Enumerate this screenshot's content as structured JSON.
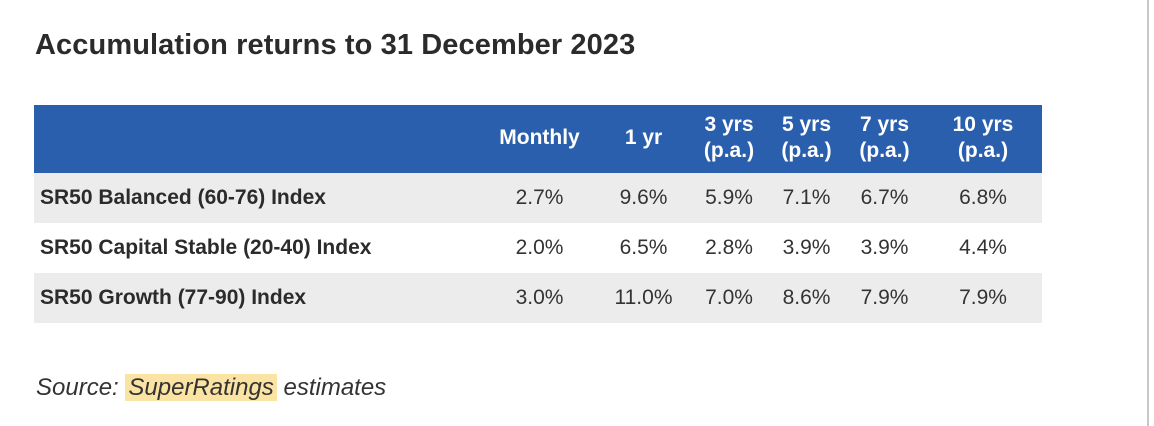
{
  "title": "Accumulation returns to 31 December 2023",
  "table": {
    "headers": [
      {
        "line1": "",
        "line2": ""
      },
      {
        "line1": "Monthly",
        "line2": ""
      },
      {
        "line1": "1 yr",
        "line2": ""
      },
      {
        "line1": "3 yrs",
        "line2": "(p.a.)"
      },
      {
        "line1": "5 yrs",
        "line2": "(p.a.)"
      },
      {
        "line1": "7 yrs",
        "line2": "(p.a.)"
      },
      {
        "line1": "10 yrs",
        "line2": "(p.a.)"
      }
    ],
    "rows": [
      {
        "name": "SR50 Balanced (60-76) Index",
        "values": [
          "2.7%",
          "9.6%",
          "5.9%",
          "7.1%",
          "6.7%",
          "6.8%"
        ]
      },
      {
        "name": "SR50 Capital Stable (20-40) Index",
        "values": [
          "2.0%",
          "6.5%",
          "2.8%",
          "3.9%",
          "3.9%",
          "4.4%"
        ]
      },
      {
        "name": "SR50 Growth (77-90) Index",
        "values": [
          "3.0%",
          "11.0%",
          "7.0%",
          "8.6%",
          "7.9%",
          "7.9%"
        ]
      }
    ]
  },
  "source": {
    "prefix": "Source: ",
    "highlight": "SuperRatings",
    "suffix": " estimates"
  },
  "colors": {
    "header_bg": "#2a5fad",
    "row_shade": "#ececec",
    "highlight": "#fbe3a3"
  }
}
